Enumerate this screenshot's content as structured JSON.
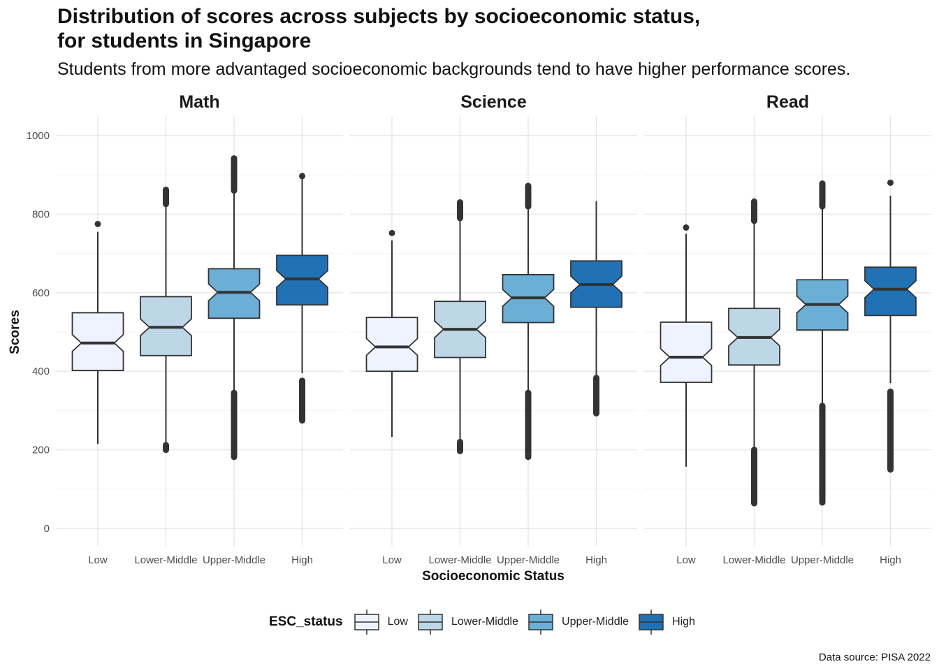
{
  "chart_data": {
    "type": "boxplot",
    "title": "Distribution of scores across subjects by socioeconomic status,\nfor students in Singapore",
    "subtitle": "Students from more advantaged socioeconomic backgrounds tend to have higher performance scores.",
    "xlabel": "Socioeconomic Status",
    "ylabel": "Scores",
    "ylim": [
      0,
      1000
    ],
    "yticks": [
      0,
      200,
      400,
      600,
      800,
      1000
    ],
    "categories": [
      "Low",
      "Lower-Middle",
      "Upper-Middle",
      "High"
    ],
    "colors": [
      "#EFF3FF",
      "#BDD7E7",
      "#6BAED6",
      "#2171B5"
    ],
    "legend": {
      "title": "ESC_status",
      "position": "bottom"
    },
    "grid": true,
    "notched": true,
    "caption": "Data source: PISA 2022",
    "panels": [
      {
        "name": "Math",
        "boxes": [
          {
            "category": "Low",
            "whisker_low": 215,
            "q1": 402,
            "median": 472,
            "q3": 549,
            "whisker_high": 755,
            "outliers": [
              [
                775,
                775
              ]
            ]
          },
          {
            "category": "Lower-Middle",
            "whisker_low": 215,
            "q1": 440,
            "median": 512,
            "q3": 590,
            "whisker_high": 822,
            "outliers": [
              [
                200,
                212
              ],
              [
                826,
                862
              ]
            ]
          },
          {
            "category": "Upper-Middle",
            "whisker_low": 345,
            "q1": 535,
            "median": 601,
            "q3": 661,
            "whisker_high": 857,
            "outliers": [
              [
                182,
                345
              ],
              [
                860,
                942
              ]
            ]
          },
          {
            "category": "High",
            "whisker_low": 395,
            "q1": 569,
            "median": 635,
            "q3": 695,
            "whisker_high": 890,
            "outliers": [
              [
                275,
                376
              ],
              [
                897,
                897
              ]
            ]
          }
        ]
      },
      {
        "name": "Science",
        "boxes": [
          {
            "category": "Low",
            "whisker_low": 233,
            "q1": 400,
            "median": 462,
            "q3": 537,
            "whisker_high": 733,
            "outliers": [
              [
                752,
                752
              ]
            ]
          },
          {
            "category": "Lower-Middle",
            "whisker_low": 225,
            "q1": 435,
            "median": 507,
            "q3": 578,
            "whisker_high": 785,
            "outliers": [
              [
                197,
                220
              ],
              [
                790,
                830
              ]
            ]
          },
          {
            "category": "Upper-Middle",
            "whisker_low": 345,
            "q1": 524,
            "median": 587,
            "q3": 646,
            "whisker_high": 820,
            "outliers": [
              [
                182,
                345
              ],
              [
                820,
                872
              ]
            ]
          },
          {
            "category": "High",
            "whisker_low": 385,
            "q1": 563,
            "median": 621,
            "q3": 681,
            "whisker_high": 833,
            "outliers": [
              [
                293,
                383
              ]
            ]
          }
        ]
      },
      {
        "name": "Read",
        "boxes": [
          {
            "category": "Low",
            "whisker_low": 157,
            "q1": 372,
            "median": 436,
            "q3": 525,
            "whisker_high": 750,
            "outliers": [
              [
                766,
                766
              ]
            ]
          },
          {
            "category": "Lower-Middle",
            "whisker_low": 205,
            "q1": 416,
            "median": 486,
            "q3": 560,
            "whisker_high": 780,
            "outliers": [
              [
                64,
                200
              ],
              [
                783,
                832
              ]
            ]
          },
          {
            "category": "Upper-Middle",
            "whisker_low": 315,
            "q1": 505,
            "median": 570,
            "q3": 633,
            "whisker_high": 820,
            "outliers": [
              [
                66,
                312
              ],
              [
                820,
                878
              ]
            ]
          },
          {
            "category": "High",
            "whisker_low": 370,
            "q1": 542,
            "median": 609,
            "q3": 665,
            "whisker_high": 847,
            "outliers": [
              [
                150,
                348
              ],
              [
                880,
                880
              ]
            ]
          }
        ]
      }
    ]
  }
}
